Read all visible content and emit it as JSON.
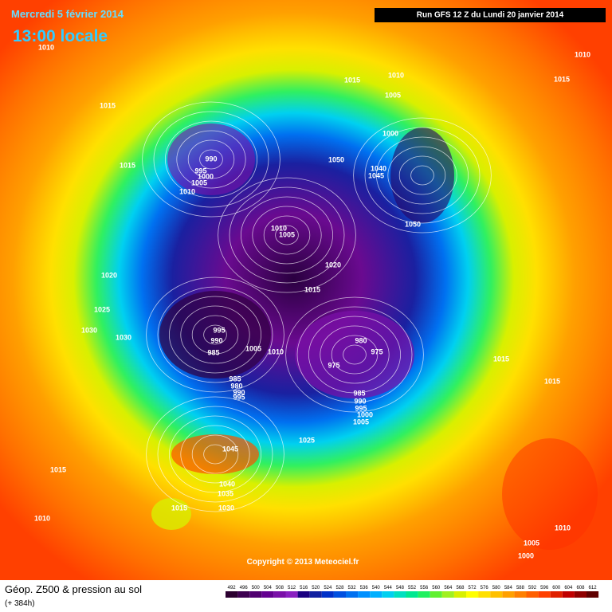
{
  "header": {
    "date": "Mercredi 5 février 2014",
    "time": "13:00 locale",
    "run": "Run GFS 12 Z du Lundi 20 janvier 2014"
  },
  "map": {
    "copyright": "Copyright © 2013 Meteociel.fr",
    "pressure_labels": [
      1010,
      1015,
      1015,
      990,
      995,
      1000,
      1005,
      1010,
      1015,
      1010,
      1005,
      1000,
      1050,
      1040,
      1045,
      1050,
      1010,
      1005,
      1020,
      1015,
      1020,
      1025,
      1030,
      1030,
      995,
      990,
      985,
      1005,
      1010,
      980,
      975,
      975,
      985,
      980,
      990,
      995,
      985,
      990,
      995,
      1000,
      1005,
      1025,
      1045,
      1015,
      1040,
      1035,
      1030,
      1015,
      1010,
      1010,
      1015,
      1015,
      1015,
      1010,
      1005,
      1000
    ]
  },
  "footer": {
    "title": "Géop. Z500 & pression au sol",
    "lead": "(+ 384h)",
    "levels": [
      492,
      496,
      500,
      504,
      508,
      512,
      516,
      520,
      524,
      528,
      532,
      536,
      540,
      544,
      548,
      552,
      556,
      560,
      564,
      568,
      572,
      576,
      580,
      584,
      588,
      592,
      596,
      600,
      604,
      608,
      612
    ],
    "colors": [
      "#2b0030",
      "#3d0050",
      "#500070",
      "#640090",
      "#7a10a8",
      "#8a20c0",
      "#1a0080",
      "#1020a0",
      "#0030c8",
      "#0050e0",
      "#0070f0",
      "#0090ff",
      "#00b0ff",
      "#00d0f0",
      "#00e0c0",
      "#00e890",
      "#20f060",
      "#60f030",
      "#a0f020",
      "#d8f000",
      "#ffff00",
      "#ffe000",
      "#ffc000",
      "#ffa000",
      "#ff8000",
      "#ff6000",
      "#ff4000",
      "#e02000",
      "#c00000",
      "#900000",
      "#600000"
    ]
  }
}
